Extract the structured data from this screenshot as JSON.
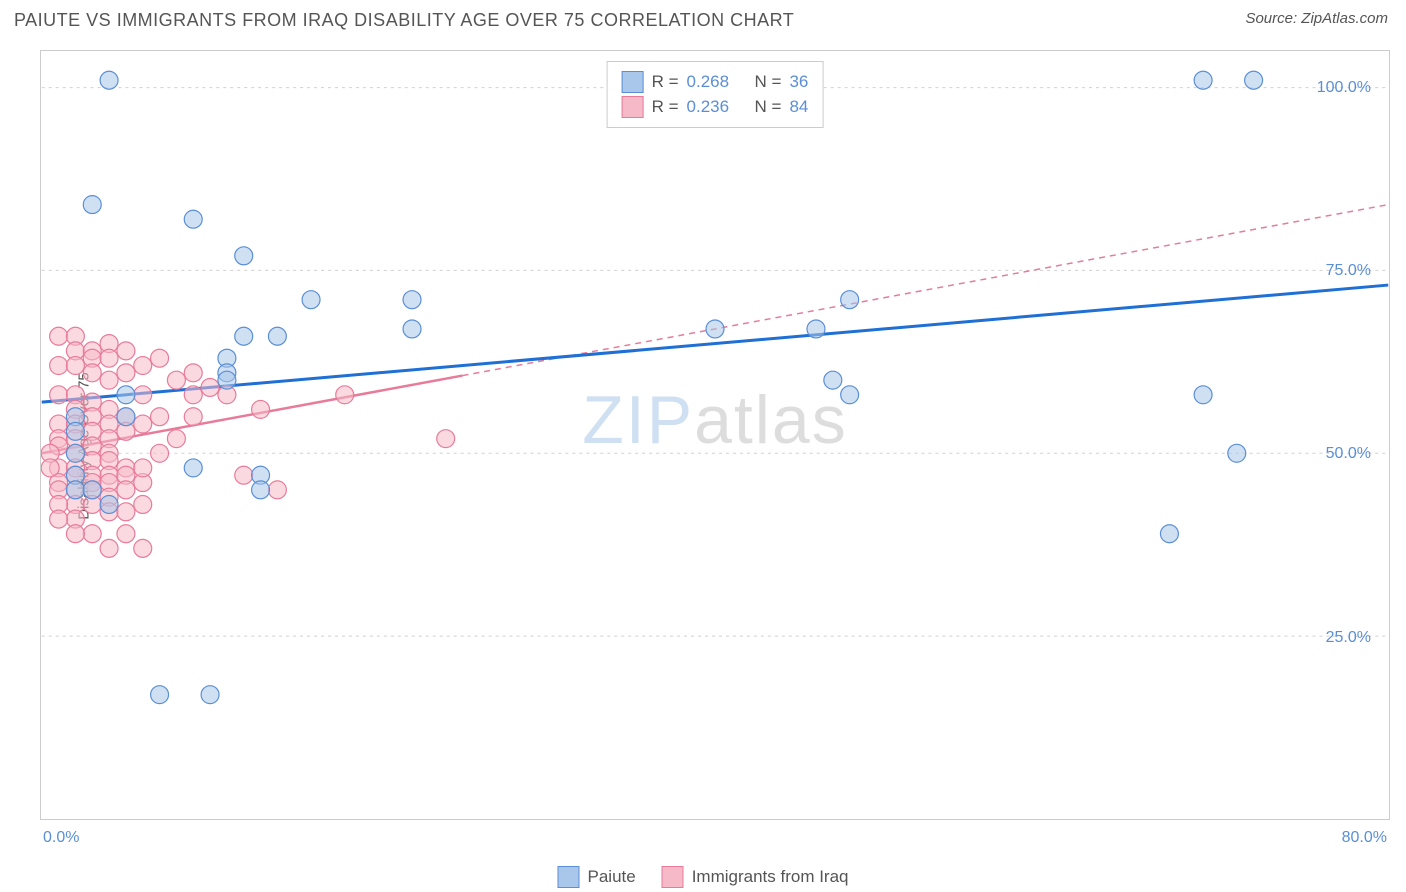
{
  "title": "PAIUTE VS IMMIGRANTS FROM IRAQ DISABILITY AGE OVER 75 CORRELATION CHART",
  "source": "Source: ZipAtlas.com",
  "y_axis_label": "Disability Age Over 75",
  "watermark_a": "ZIP",
  "watermark_b": "atlas",
  "chart": {
    "type": "scatter",
    "xlim": [
      0,
      80
    ],
    "ylim": [
      0,
      105
    ],
    "y_ticks": [
      25,
      50,
      75,
      100
    ],
    "y_tick_labels": [
      "25.0%",
      "50.0%",
      "75.0%",
      "100.0%"
    ],
    "x_tick_positions": [
      0,
      10,
      20,
      30,
      40,
      50,
      60,
      70,
      80
    ],
    "x_min_label": "0.0%",
    "x_max_label": "80.0%",
    "grid_color": "#d0d0d0",
    "tick_color": "#cccccc",
    "background": "#ffffff",
    "marker_radius": 9,
    "marker_opacity": 0.55,
    "series": [
      {
        "name": "Paiute",
        "color_fill": "#a9c7ea",
        "color_stroke": "#5a8fd6",
        "trend_color": "#1f6fd4",
        "trend_dash": "none",
        "trend": {
          "x1": 0,
          "y1": 57,
          "x2": 80,
          "y2": 73
        },
        "R_label": "R =",
        "R": "0.268",
        "N_label": "N =",
        "N": "36",
        "points": [
          [
            4,
            101
          ],
          [
            69,
            101
          ],
          [
            72,
            101
          ],
          [
            3,
            84
          ],
          [
            9,
            82
          ],
          [
            12,
            77
          ],
          [
            16,
            71
          ],
          [
            22,
            71
          ],
          [
            48,
            71
          ],
          [
            12,
            66
          ],
          [
            14,
            66
          ],
          [
            46,
            67
          ],
          [
            11,
            63
          ],
          [
            11,
            61
          ],
          [
            11,
            60
          ],
          [
            40,
            67
          ],
          [
            22,
            67
          ],
          [
            47,
            60
          ],
          [
            48,
            58
          ],
          [
            2,
            55
          ],
          [
            2,
            53
          ],
          [
            2,
            50
          ],
          [
            2,
            47
          ],
          [
            2,
            45
          ],
          [
            3,
            45
          ],
          [
            71,
            50
          ],
          [
            9,
            48
          ],
          [
            13,
            47
          ],
          [
            13,
            45
          ],
          [
            4,
            43
          ],
          [
            67,
            39
          ],
          [
            7,
            17
          ],
          [
            10,
            17
          ],
          [
            69,
            58
          ],
          [
            5,
            58
          ],
          [
            5,
            55
          ]
        ]
      },
      {
        "name": "Immigrants from Iraq",
        "color_fill": "#f6b9c8",
        "color_stroke": "#e87b9a",
        "trend_color": "#e87b9a",
        "trend_dash": "6,5",
        "trend": {
          "x1": 0,
          "y1": 50,
          "x2": 80,
          "y2": 84
        },
        "R_label": "R =",
        "R": "0.236",
        "N_label": "N =",
        "N": "84",
        "points": [
          [
            1,
            66
          ],
          [
            2,
            66
          ],
          [
            2,
            64
          ],
          [
            3,
            64
          ],
          [
            3,
            63
          ],
          [
            4,
            65
          ],
          [
            4,
            63
          ],
          [
            5,
            64
          ],
          [
            1,
            62
          ],
          [
            2,
            62
          ],
          [
            3,
            61
          ],
          [
            4,
            60
          ],
          [
            5,
            61
          ],
          [
            6,
            62
          ],
          [
            7,
            63
          ],
          [
            8,
            60
          ],
          [
            1,
            58
          ],
          [
            2,
            58
          ],
          [
            2,
            56
          ],
          [
            3,
            57
          ],
          [
            3,
            55
          ],
          [
            4,
            56
          ],
          [
            4,
            54
          ],
          [
            5,
            55
          ],
          [
            1,
            54
          ],
          [
            2,
            54
          ],
          [
            3,
            53
          ],
          [
            4,
            52
          ],
          [
            5,
            53
          ],
          [
            6,
            54
          ],
          [
            7,
            55
          ],
          [
            6,
            58
          ],
          [
            1,
            52
          ],
          [
            1,
            51
          ],
          [
            2,
            52
          ],
          [
            2,
            50
          ],
          [
            3,
            51
          ],
          [
            3,
            49
          ],
          [
            4,
            50
          ],
          [
            4,
            49
          ],
          [
            1,
            48
          ],
          [
            2,
            48
          ],
          [
            2,
            47
          ],
          [
            3,
            47
          ],
          [
            3,
            46
          ],
          [
            4,
            47
          ],
          [
            5,
            48
          ],
          [
            5,
            47
          ],
          [
            1,
            46
          ],
          [
            1,
            45
          ],
          [
            2,
            45
          ],
          [
            3,
            45
          ],
          [
            4,
            46
          ],
          [
            5,
            45
          ],
          [
            6,
            46
          ],
          [
            6,
            48
          ],
          [
            2,
            43
          ],
          [
            3,
            43
          ],
          [
            4,
            44
          ],
          [
            4,
            42
          ],
          [
            5,
            42
          ],
          [
            6,
            43
          ],
          [
            7,
            50
          ],
          [
            8,
            52
          ],
          [
            2,
            41
          ],
          [
            3,
            39
          ],
          [
            5,
            39
          ],
          [
            2,
            39
          ],
          [
            1,
            43
          ],
          [
            1,
            41
          ],
          [
            0.5,
            50
          ],
          [
            0.5,
            48
          ],
          [
            4,
            37
          ],
          [
            6,
            37
          ],
          [
            9,
            61
          ],
          [
            10,
            59
          ],
          [
            11,
            58
          ],
          [
            13,
            56
          ],
          [
            12,
            47
          ],
          [
            14,
            45
          ],
          [
            24,
            52
          ],
          [
            18,
            58
          ],
          [
            9,
            58
          ],
          [
            9,
            55
          ]
        ]
      }
    ]
  },
  "legend": {
    "series1_label": "Paiute",
    "series2_label": "Immigrants from Iraq"
  }
}
